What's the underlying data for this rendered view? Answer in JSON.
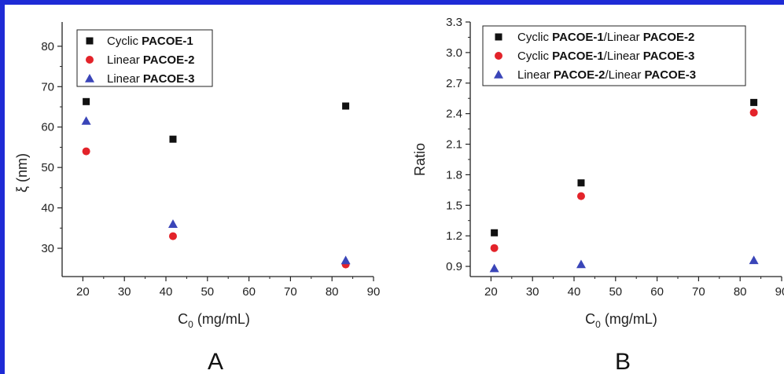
{
  "colors": {
    "frame": "#1e2bd6",
    "series_black": "#111111",
    "series_red": "#e3232a",
    "series_blue": "#3a45b8"
  },
  "chart_data": [
    {
      "type": "scatter",
      "panel_label": "A",
      "title": "",
      "xlabel_main": "C",
      "xlabel_sub": "0",
      "xlabel_unit": " (mg/mL)",
      "ylabel": "ξ (nm)",
      "xlim": [
        15,
        90
      ],
      "ylim": [
        23,
        86
      ],
      "xticks": [
        20,
        30,
        40,
        50,
        60,
        70,
        80,
        90
      ],
      "yticks": [
        30,
        40,
        50,
        60,
        70,
        80
      ],
      "grid": false,
      "legend_position": "top-left",
      "series": [
        {
          "legend_plain": "Cyclic ",
          "legend_bold": "PACOE-1",
          "marker": "square",
          "color": "#111111",
          "x": [
            20.8,
            41.7,
            83.3
          ],
          "y": [
            66.3,
            57.0,
            65.2
          ]
        },
        {
          "legend_plain": "Linear ",
          "legend_bold": "PACOE-2",
          "marker": "circle",
          "color": "#e3232a",
          "x": [
            20.8,
            41.7,
            83.3
          ],
          "y": [
            54.0,
            33.0,
            26.0
          ]
        },
        {
          "legend_plain": "Linear ",
          "legend_bold": "PACOE-3",
          "marker": "triangle",
          "color": "#3a45b8",
          "x": [
            20.8,
            41.7,
            83.3
          ],
          "y": [
            61.5,
            36.0,
            27.0
          ]
        }
      ]
    },
    {
      "type": "scatter",
      "panel_label": "B",
      "title": "",
      "xlabel_main": "C",
      "xlabel_sub": "0",
      "xlabel_unit": " (mg/mL)",
      "ylabel": "Ratio",
      "xlim": [
        15,
        90
      ],
      "ylim": [
        0.8,
        3.3
      ],
      "xticks": [
        20,
        30,
        40,
        50,
        60,
        70,
        80,
        90
      ],
      "yticks": [
        "0.9",
        "1.2",
        "1.5",
        "1.8",
        "2.1",
        "2.4",
        "2.7",
        "3.0",
        "3.3"
      ],
      "grid": false,
      "legend_position": "top-left",
      "series": [
        {
          "legend_parts": [
            {
              "text": "Cyclic ",
              "bold": false
            },
            {
              "text": "PACOE-1",
              "bold": true
            },
            {
              "text": "/Linear ",
              "bold": false
            },
            {
              "text": "PACOE-2",
              "bold": true
            }
          ],
          "marker": "square",
          "color": "#111111",
          "x": [
            20.8,
            41.7,
            83.3
          ],
          "y": [
            1.23,
            1.72,
            2.51
          ]
        },
        {
          "legend_parts": [
            {
              "text": "Cyclic ",
              "bold": false
            },
            {
              "text": "PACOE-1",
              "bold": true
            },
            {
              "text": "/Linear ",
              "bold": false
            },
            {
              "text": "PACOE-3",
              "bold": true
            }
          ],
          "marker": "circle",
          "color": "#e3232a",
          "x": [
            20.8,
            41.7,
            83.3
          ],
          "y": [
            1.08,
            1.59,
            2.41
          ]
        },
        {
          "legend_parts": [
            {
              "text": "Linear ",
              "bold": false
            },
            {
              "text": "PACOE-2",
              "bold": true
            },
            {
              "text": "/Linear ",
              "bold": false
            },
            {
              "text": "PACOE-3",
              "bold": true
            }
          ],
          "marker": "triangle",
          "color": "#3a45b8",
          "x": [
            20.8,
            41.7,
            83.3
          ],
          "y": [
            0.88,
            0.92,
            0.96
          ]
        }
      ]
    }
  ]
}
